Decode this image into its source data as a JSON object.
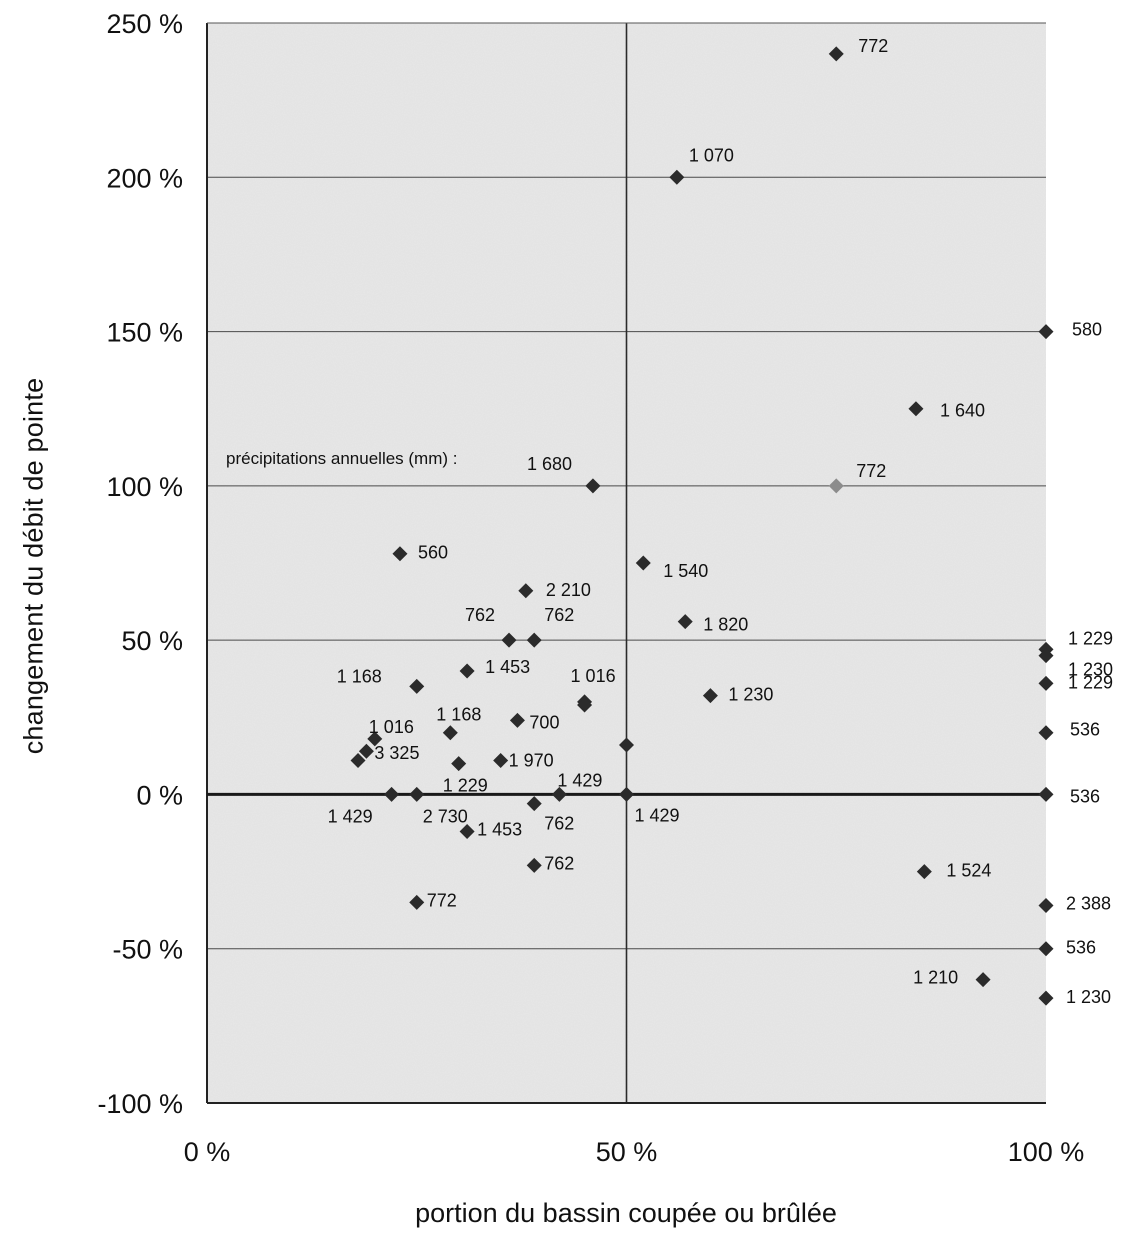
{
  "chart_data": {
    "type": "scatter",
    "xlabel": "portion du bassin coupée ou brûlée",
    "ylabel": "changement du débit de pointe",
    "annotation": "précipitations annuelles (mm) :",
    "xlim": [
      0,
      100
    ],
    "ylim": [
      -100,
      250
    ],
    "x_ticks": [
      {
        "value": 0,
        "label": "0 %"
      },
      {
        "value": 50,
        "label": "50 %"
      },
      {
        "value": 100,
        "label": "100 %"
      }
    ],
    "y_ticks": [
      {
        "value": 250,
        "label": "250 %"
      },
      {
        "value": 200,
        "label": "200 %"
      },
      {
        "value": 150,
        "label": "150 %"
      },
      {
        "value": 100,
        "label": "100 %"
      },
      {
        "value": 50,
        "label": "50 %"
      },
      {
        "value": 0,
        "label": "0 %"
      },
      {
        "value": -50,
        "label": "-50 %"
      },
      {
        "value": -100,
        "label": "-100 %"
      }
    ],
    "grid": true,
    "marker_color": "#2b2b2b",
    "highlight_color": "#8c8c8c",
    "points": [
      {
        "x": 75,
        "y": 240,
        "label": "772"
      },
      {
        "x": 56,
        "y": 200,
        "label": "1 070"
      },
      {
        "x": 100,
        "y": 150,
        "label": "580"
      },
      {
        "x": 84.5,
        "y": 125,
        "label": "1 640"
      },
      {
        "x": 46,
        "y": 100,
        "label": "1 680"
      },
      {
        "x": 75,
        "y": 100,
        "label": "772",
        "highlight": true
      },
      {
        "x": 23,
        "y": 78,
        "label": "560"
      },
      {
        "x": 52,
        "y": 75,
        "label": "1 540"
      },
      {
        "x": 38,
        "y": 66,
        "label": "2 210"
      },
      {
        "x": 36,
        "y": 50,
        "label": "762"
      },
      {
        "x": 39,
        "y": 50,
        "label": "762"
      },
      {
        "x": 57,
        "y": 56,
        "label": "1 820"
      },
      {
        "x": 100,
        "y": 47,
        "label": "1 229"
      },
      {
        "x": 100,
        "y": 45,
        "label": "1 230"
      },
      {
        "x": 100,
        "y": 36,
        "label": "1 229"
      },
      {
        "x": 31,
        "y": 40,
        "label": "1 453"
      },
      {
        "x": 25,
        "y": 35,
        "label": "1 168"
      },
      {
        "x": 45,
        "y": 30,
        "label": "1 016"
      },
      {
        "x": 45,
        "y": 29,
        "label": ""
      },
      {
        "x": 60,
        "y": 32,
        "label": "1 230"
      },
      {
        "x": 37,
        "y": 24,
        "label": "700"
      },
      {
        "x": 29,
        "y": 20,
        "label": "1 168"
      },
      {
        "x": 100,
        "y": 20,
        "label": "536"
      },
      {
        "x": 20,
        "y": 18,
        "label": "1 016"
      },
      {
        "x": 19,
        "y": 14,
        "label": "3 325"
      },
      {
        "x": 18,
        "y": 11,
        "label": ""
      },
      {
        "x": 30,
        "y": 10,
        "label": "1 229"
      },
      {
        "x": 35,
        "y": 11,
        "label": "1 970"
      },
      {
        "x": 50,
        "y": 16,
        "label": ""
      },
      {
        "x": 22,
        "y": 0,
        "label": "1 429"
      },
      {
        "x": 25,
        "y": 0,
        "label": "2 730"
      },
      {
        "x": 42,
        "y": 0,
        "label": "1 429"
      },
      {
        "x": 50,
        "y": 0,
        "label": "1 429"
      },
      {
        "x": 100,
        "y": 0,
        "label": "536"
      },
      {
        "x": 39,
        "y": -3,
        "label": "762"
      },
      {
        "x": 31,
        "y": -12,
        "label": "1 453"
      },
      {
        "x": 39,
        "y": -23,
        "label": "762"
      },
      {
        "x": 85.5,
        "y": -25,
        "label": "1 524"
      },
      {
        "x": 25,
        "y": -35,
        "label": "772"
      },
      {
        "x": 100,
        "y": -36,
        "label": "2 388"
      },
      {
        "x": 100,
        "y": -50,
        "label": "536"
      },
      {
        "x": 92.5,
        "y": -60,
        "label": "1 210"
      },
      {
        "x": 100,
        "y": -66,
        "label": "1 230"
      }
    ]
  }
}
